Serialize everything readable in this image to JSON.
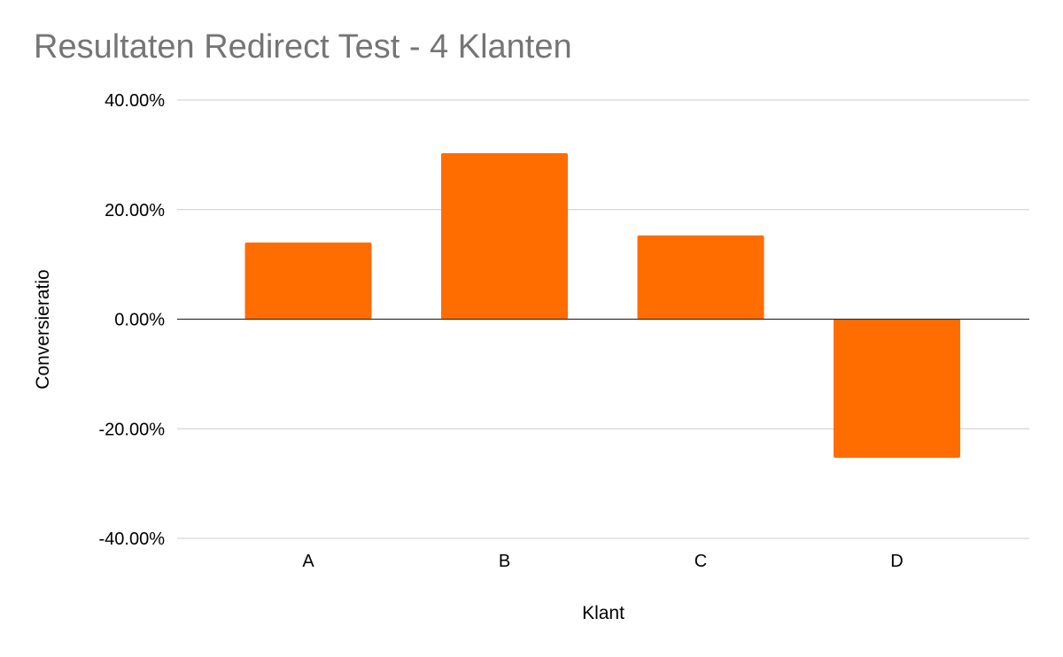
{
  "chart_data": {
    "type": "bar",
    "title": "Resultaten Redirect Test - 4 Klanten",
    "xlabel": "Klant",
    "ylabel": "Conversieratio",
    "categories": [
      "A",
      "B",
      "C",
      "D"
    ],
    "series": [
      {
        "values": [
          14.0,
          30.3,
          15.3,
          -25.3
        ]
      }
    ],
    "ylim": [
      -40,
      40
    ],
    "yticks": [
      40,
      20,
      0,
      -20,
      -40
    ],
    "ytick_labels": [
      "40.00%",
      "20.00%",
      "0.00%",
      "-20.00%",
      "-40.00%"
    ],
    "grid": true,
    "legend": "none",
    "colors": {
      "bar": "#ff6d01",
      "grid": "#cccccc",
      "zero_line": "#333333",
      "title": "#757575"
    }
  }
}
